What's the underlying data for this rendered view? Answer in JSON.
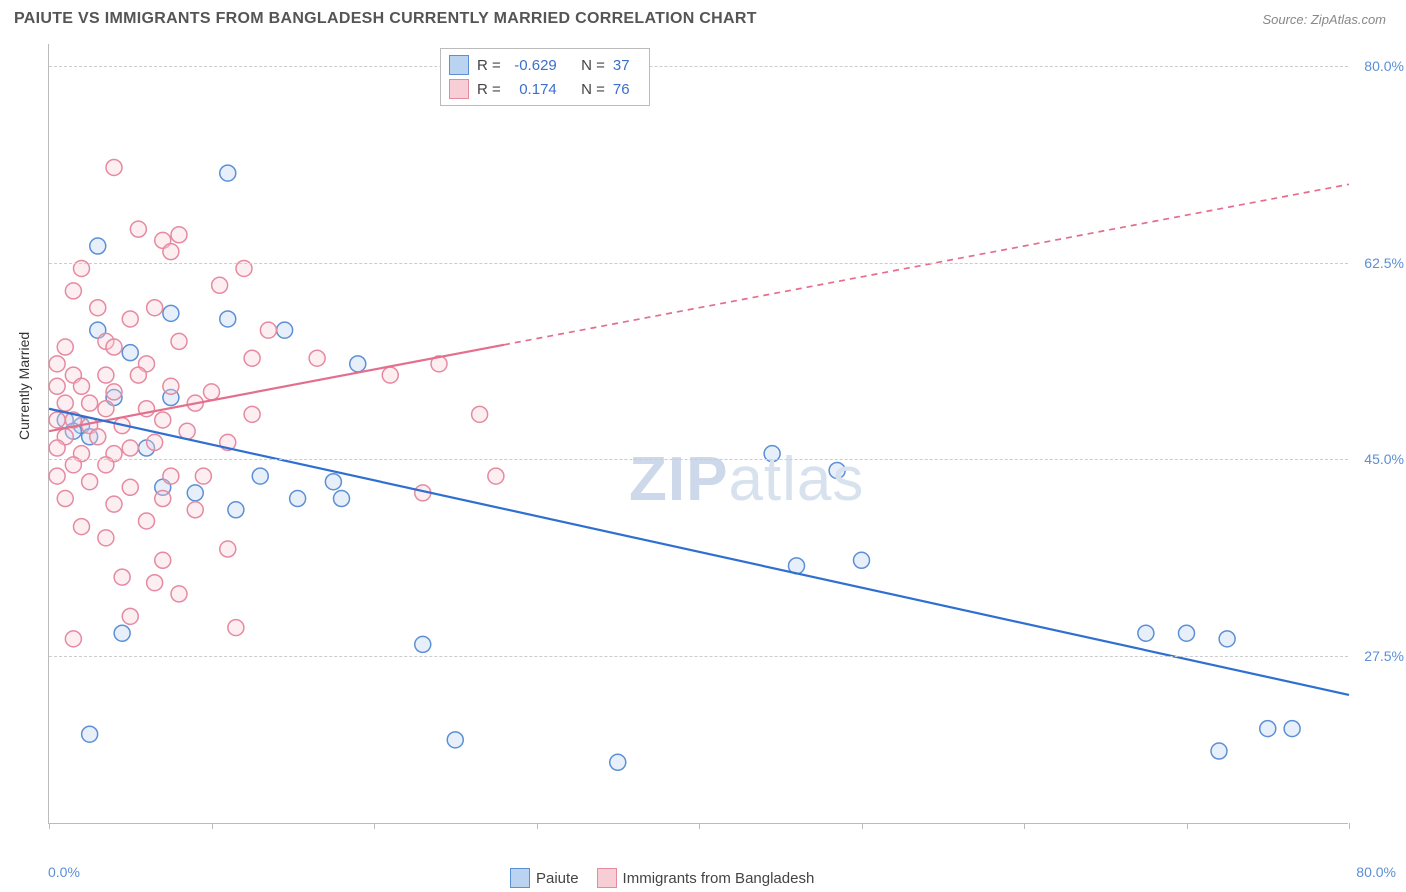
{
  "header": {
    "title": "PAIUTE VS IMMIGRANTS FROM BANGLADESH CURRENTLY MARRIED CORRELATION CHART",
    "source": "Source: ZipAtlas.com"
  },
  "chart": {
    "type": "scatter",
    "ylabel": "Currently Married",
    "xlim": [
      0,
      80
    ],
    "ylim": [
      12.5,
      82
    ],
    "x_tick_positions": [
      0,
      10,
      20,
      30,
      40,
      50,
      60,
      70,
      80
    ],
    "x_axis_min_label": "0.0%",
    "x_axis_max_label": "80.0%",
    "y_ticks": [
      {
        "value": 27.5,
        "label": "27.5%"
      },
      {
        "value": 45.0,
        "label": "45.0%"
      },
      {
        "value": 62.5,
        "label": "62.5%"
      },
      {
        "value": 80.0,
        "label": "80.0%"
      }
    ],
    "background_color": "#ffffff",
    "grid_color": "#cccccc",
    "axis_color": "#bbbbbb",
    "axis_label_color": "#5b8fd6",
    "marker_radius": 8,
    "marker_stroke_width": 1.5,
    "marker_fill_opacity": 0.35,
    "line_width": 2.2,
    "series": [
      {
        "name": "Paiute",
        "color_fill": "#b9d3f0",
        "color_stroke": "#5b8fd6",
        "line_color": "#2f6fd0",
        "R": "-0.629",
        "N": "37",
        "trend": {
          "x1": 0,
          "y1": 49.5,
          "x2": 80,
          "y2": 24.0,
          "solid_to_x": 80
        },
        "points": [
          [
            11,
            70.5
          ],
          [
            3,
            64
          ],
          [
            7.5,
            58
          ],
          [
            11,
            57.5
          ],
          [
            3,
            56.5
          ],
          [
            14.5,
            56.5
          ],
          [
            5,
            54.5
          ],
          [
            19,
            53.5
          ],
          [
            4,
            50.5
          ],
          [
            7.5,
            50.5
          ],
          [
            1,
            48.5
          ],
          [
            2,
            48
          ],
          [
            1.5,
            47.5
          ],
          [
            2.5,
            47
          ],
          [
            6,
            46
          ],
          [
            44.5,
            45.5
          ],
          [
            13,
            43.5
          ],
          [
            48.5,
            44
          ],
          [
            17.5,
            43
          ],
          [
            7,
            42.5
          ],
          [
            9,
            42
          ],
          [
            15.3,
            41.5
          ],
          [
            11.5,
            40.5
          ],
          [
            18,
            41.5
          ],
          [
            46,
            35.5
          ],
          [
            50,
            36
          ],
          [
            67.5,
            29.5
          ],
          [
            70,
            29.5
          ],
          [
            72.5,
            29
          ],
          [
            23,
            28.5
          ],
          [
            75,
            21
          ],
          [
            76.5,
            21
          ],
          [
            72,
            19
          ],
          [
            35,
            18
          ],
          [
            25,
            20
          ],
          [
            2.5,
            20.5
          ],
          [
            4.5,
            29.5
          ]
        ]
      },
      {
        "name": "Immigrants from Bangladesh",
        "color_fill": "#f7cdd6",
        "color_stroke": "#e68aa0",
        "line_color": "#e46f8d",
        "R": "0.174",
        "N": "76",
        "trend": {
          "x1": 0,
          "y1": 47.5,
          "x2": 80,
          "y2": 69.5,
          "solid_to_x": 28
        },
        "points": [
          [
            4,
            71
          ],
          [
            5.5,
            65.5
          ],
          [
            8,
            65
          ],
          [
            7,
            64.5
          ],
          [
            7.5,
            63.5
          ],
          [
            2,
            62
          ],
          [
            12,
            62
          ],
          [
            1.5,
            60
          ],
          [
            10.5,
            60.5
          ],
          [
            3,
            58.5
          ],
          [
            6.5,
            58.5
          ],
          [
            5,
            57.5
          ],
          [
            3.5,
            55.5
          ],
          [
            13.5,
            56.5
          ],
          [
            1,
            55
          ],
          [
            4,
            55
          ],
          [
            8,
            55.5
          ],
          [
            0.5,
            53.5
          ],
          [
            6,
            53.5
          ],
          [
            12.5,
            54
          ],
          [
            16.5,
            54
          ],
          [
            24,
            53.5
          ],
          [
            1.5,
            52.5
          ],
          [
            3.5,
            52.5
          ],
          [
            5.5,
            52.5
          ],
          [
            21,
            52.5
          ],
          [
            0.5,
            51.5
          ],
          [
            2,
            51.5
          ],
          [
            4,
            51
          ],
          [
            7.5,
            51.5
          ],
          [
            10,
            51
          ],
          [
            1,
            50
          ],
          [
            2.5,
            50
          ],
          [
            3.5,
            49.5
          ],
          [
            6,
            49.5
          ],
          [
            9,
            50
          ],
          [
            0.5,
            48.5
          ],
          [
            1.5,
            48.5
          ],
          [
            2.5,
            48
          ],
          [
            4.5,
            48
          ],
          [
            7,
            48.5
          ],
          [
            12.5,
            49
          ],
          [
            26.5,
            49
          ],
          [
            1,
            47
          ],
          [
            3,
            47
          ],
          [
            5,
            46
          ],
          [
            8.5,
            47.5
          ],
          [
            0.5,
            46
          ],
          [
            2,
            45.5
          ],
          [
            4,
            45.5
          ],
          [
            6.5,
            46.5
          ],
          [
            11,
            46.5
          ],
          [
            1.5,
            44.5
          ],
          [
            3.5,
            44.5
          ],
          [
            7.5,
            43.5
          ],
          [
            9.5,
            43.5
          ],
          [
            0.5,
            43.5
          ],
          [
            2.5,
            43
          ],
          [
            5,
            42.5
          ],
          [
            1,
            41.5
          ],
          [
            4,
            41
          ],
          [
            7,
            41.5
          ],
          [
            23,
            42
          ],
          [
            27.5,
            43.5
          ],
          [
            6,
            39.5
          ],
          [
            9,
            40.5
          ],
          [
            2,
            39
          ],
          [
            3.5,
            38
          ],
          [
            7,
            36
          ],
          [
            11,
            37
          ],
          [
            4.5,
            34.5
          ],
          [
            6.5,
            34
          ],
          [
            8,
            33
          ],
          [
            5,
            31
          ],
          [
            11.5,
            30
          ],
          [
            1.5,
            29
          ]
        ]
      }
    ],
    "legend_top": {
      "R_label": "R =",
      "N_label": "N ="
    },
    "watermark": {
      "zip": "ZIP",
      "atlas": "atlas"
    }
  }
}
